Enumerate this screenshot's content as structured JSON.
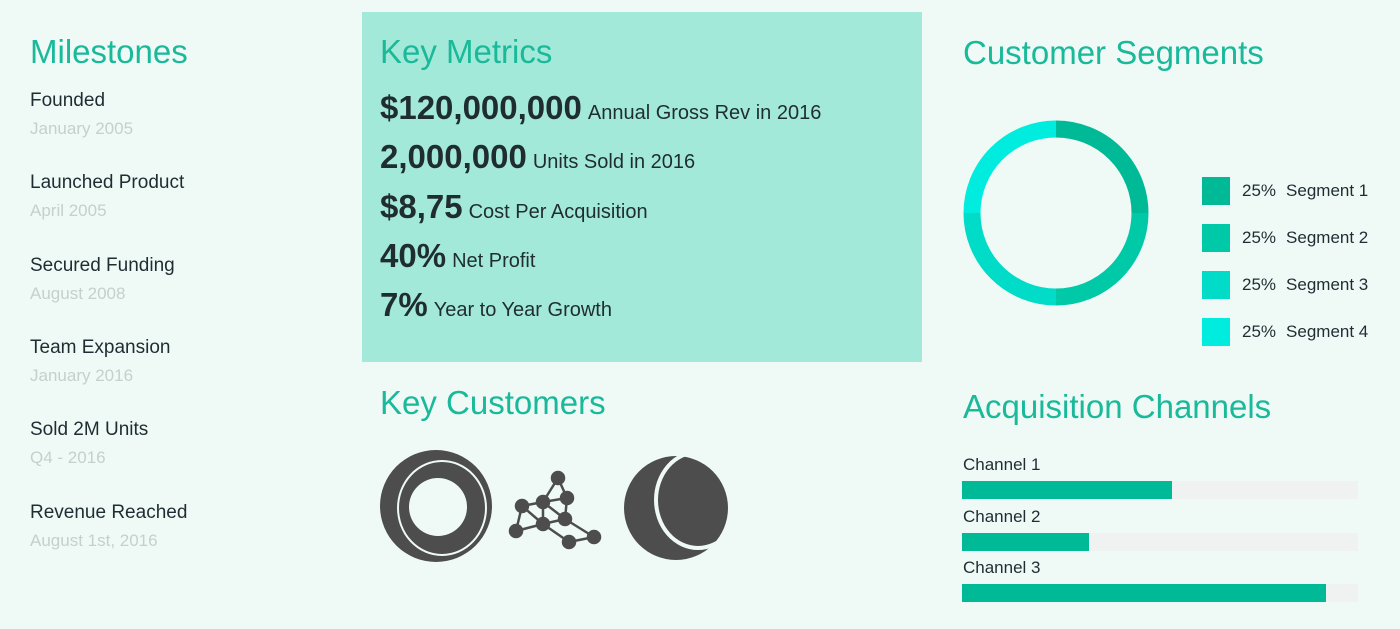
{
  "milestones": {
    "title": "Milestones",
    "items": [
      {
        "label": "Founded",
        "date": "January 2005"
      },
      {
        "label": "Launched Product",
        "date": "April 2005"
      },
      {
        "label": "Secured Funding",
        "date": "August 2008"
      },
      {
        "label": "Team Expansion",
        "date": "January 2016"
      },
      {
        "label": "Sold 2M Units",
        "date": "Q4 - 2016"
      },
      {
        "label": "Revenue Reached",
        "date": "August 1st, 2016"
      }
    ]
  },
  "key_metrics": {
    "title": "Key Metrics",
    "items": [
      {
        "value": "$120,000,000",
        "label": "Annual Gross Rev in 2016"
      },
      {
        "value": "2,000,000",
        "label": "Units Sold in 2016"
      },
      {
        "value": "$8,75",
        "label": "Cost Per Acquisition"
      },
      {
        "value": "40%",
        "label": "Net Profit"
      },
      {
        "value": "7%",
        "label": "Year to Year Growth"
      }
    ]
  },
  "key_customers": {
    "title": "Key Customers",
    "logos": [
      "ring-logo-icon",
      "network-logo-icon",
      "sphere-logo-icon"
    ]
  },
  "chart_data": [
    {
      "type": "pie",
      "title": "Customer Segments",
      "categories": [
        "Segment 1",
        "Segment 2",
        "Segment 3",
        "Segment 4"
      ],
      "values": [
        25,
        25,
        25,
        25
      ],
      "labels": [
        "25%",
        "25%",
        "25%",
        "25%"
      ],
      "colors": [
        "#00b996",
        "#00c9a8",
        "#00dcc8",
        "#00ecdf"
      ],
      "legend": "right"
    },
    {
      "type": "bar",
      "title": "Acquisition Channels",
      "categories": [
        "Channel 1",
        "Channel 2",
        "Channel 3"
      ],
      "values": [
        53,
        32,
        92
      ],
      "ylim": [
        0,
        100
      ],
      "color": "#00b996"
    }
  ]
}
